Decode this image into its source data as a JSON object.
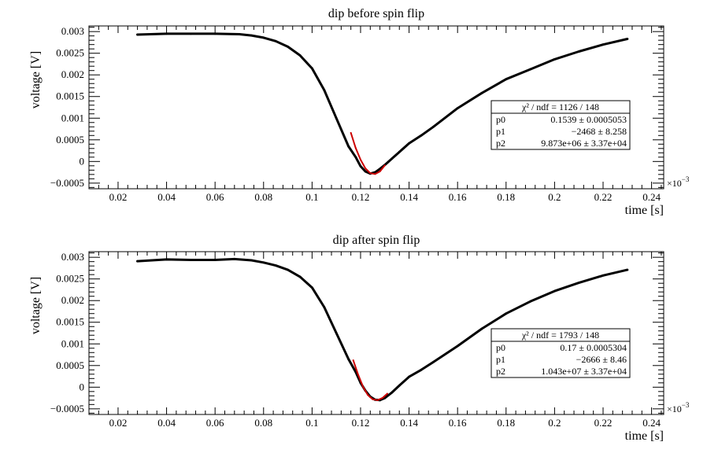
{
  "chart_data": [
    {
      "type": "scatter",
      "title": "dip before spin flip",
      "xlabel": "time [s]",
      "ylabel": "voltage [V]",
      "x_multiplier": "×10",
      "x_multiplier_exp": "−3",
      "xlim": [
        0.008,
        0.245
      ],
      "ylim": [
        -0.00063,
        0.00313
      ],
      "x_ticks": [
        0.02,
        0.04,
        0.06,
        0.08,
        0.1,
        0.12,
        0.14,
        0.16,
        0.18,
        0.2,
        0.22,
        0.24
      ],
      "x_tick_labels": [
        "0.02",
        "0.04",
        "0.06",
        "0.08",
        "0.1",
        "0.12",
        "0.14",
        "0.16",
        "0.18",
        "0.2",
        "0.22",
        "0.24"
      ],
      "y_ticks": [
        -0.0005,
        0,
        0.0005,
        0.001,
        0.0015,
        0.002,
        0.0025,
        0.003
      ],
      "y_tick_labels": [
        "−0.0005",
        "0",
        "0.0005",
        "0.001",
        "0.0015",
        "0.002",
        "0.0025",
        "0.003"
      ],
      "series": [
        {
          "color": "#000000",
          "x": [
            0.028,
            0.04,
            0.05,
            0.06,
            0.07,
            0.075,
            0.08,
            0.085,
            0.09,
            0.095,
            0.1,
            0.105,
            0.11,
            0.115,
            0.118,
            0.12,
            0.122,
            0.124,
            0.126,
            0.128,
            0.13,
            0.133,
            0.136,
            0.14,
            0.145,
            0.15,
            0.16,
            0.17,
            0.18,
            0.19,
            0.2,
            0.21,
            0.22,
            0.23
          ],
          "y": [
            0.00293,
            0.00295,
            0.00295,
            0.00295,
            0.00294,
            0.00291,
            0.00286,
            0.00278,
            0.00265,
            0.00245,
            0.00215,
            0.00165,
            0.001,
            0.00035,
            0.0001,
            -0.00011,
            -0.00023,
            -0.00028,
            -0.00025,
            -0.00017,
            -8e-05,
            7e-05,
            0.00022,
            0.00042,
            0.0006,
            0.0008,
            0.00123,
            0.00158,
            0.0019,
            0.00213,
            0.00236,
            0.00254,
            0.0027,
            0.00283
          ]
        },
        {
          "color": "#cc0000",
          "x": [
            0.116,
            0.118,
            0.12,
            0.122,
            0.124,
            0.126,
            0.128,
            0.13
          ],
          "y": [
            0.00066,
            0.00031,
            4e-05,
            -0.00016,
            -0.00027,
            -0.00029,
            -0.00023,
            -9e-05
          ]
        }
      ],
      "fit_box": {
        "header": "χ² / ndf =  1126 / 148",
        "rows": [
          {
            "name": "p0",
            "value": "0.1539 ± 0.0005053"
          },
          {
            "name": "p1",
            "value": "−2468 ± 8.258"
          },
          {
            "name": "p2",
            "value": "9.873e+06 ± 3.37e+04"
          }
        ]
      }
    },
    {
      "type": "scatter",
      "title": "dip after spin flip",
      "xlabel": "time [s]",
      "ylabel": "voltage [V]",
      "x_multiplier": "×10",
      "x_multiplier_exp": "−3",
      "xlim": [
        0.008,
        0.245
      ],
      "ylim": [
        -0.00063,
        0.00313
      ],
      "x_ticks": [
        0.02,
        0.04,
        0.06,
        0.08,
        0.1,
        0.12,
        0.14,
        0.16,
        0.18,
        0.2,
        0.22,
        0.24
      ],
      "x_tick_labels": [
        "0.02",
        "0.04",
        "0.06",
        "0.08",
        "0.1",
        "0.12",
        "0.14",
        "0.16",
        "0.18",
        "0.2",
        "0.22",
        "0.24"
      ],
      "y_ticks": [
        -0.0005,
        0,
        0.0005,
        0.001,
        0.0015,
        0.002,
        0.0025,
        0.003
      ],
      "y_tick_labels": [
        "−0.0005",
        "0",
        "0.0005",
        "0.001",
        "0.0015",
        "0.002",
        "0.0025",
        "0.003"
      ],
      "series": [
        {
          "color": "#000000",
          "x": [
            0.028,
            0.04,
            0.05,
            0.06,
            0.068,
            0.075,
            0.08,
            0.085,
            0.09,
            0.095,
            0.1,
            0.105,
            0.11,
            0.115,
            0.118,
            0.12,
            0.122,
            0.124,
            0.126,
            0.128,
            0.13,
            0.133,
            0.136,
            0.14,
            0.145,
            0.15,
            0.16,
            0.17,
            0.18,
            0.19,
            0.2,
            0.21,
            0.22,
            0.23
          ],
          "y": [
            0.00291,
            0.00295,
            0.00294,
            0.00294,
            0.00296,
            0.00293,
            0.00288,
            0.00281,
            0.00271,
            0.00255,
            0.0023,
            0.00185,
            0.00125,
            0.00065,
            0.00035,
            0.0001,
            -8e-05,
            -0.00022,
            -0.00029,
            -0.0003,
            -0.00025,
            -0.00012,
            4e-05,
            0.00024,
            0.0004,
            0.00058,
            0.00095,
            0.00135,
            0.0017,
            0.00198,
            0.00222,
            0.00241,
            0.00258,
            0.00271
          ]
        },
        {
          "color": "#cc0000",
          "x": [
            0.117,
            0.119,
            0.121,
            0.123,
            0.125,
            0.127,
            0.129,
            0.131
          ],
          "y": [
            0.00062,
            0.00029,
            1e-05,
            -0.00018,
            -0.00028,
            -0.0003,
            -0.00025,
            -0.00015
          ]
        }
      ],
      "fit_box": {
        "header": "χ² / ndf =  1793 / 148",
        "rows": [
          {
            "name": "p0",
            "value": "0.17 ± 0.0005304"
          },
          {
            "name": "p1",
            "value": "−2666 ±  8.46"
          },
          {
            "name": "p2",
            "value": "1.043e+07 ± 3.37e+04"
          }
        ]
      }
    }
  ]
}
